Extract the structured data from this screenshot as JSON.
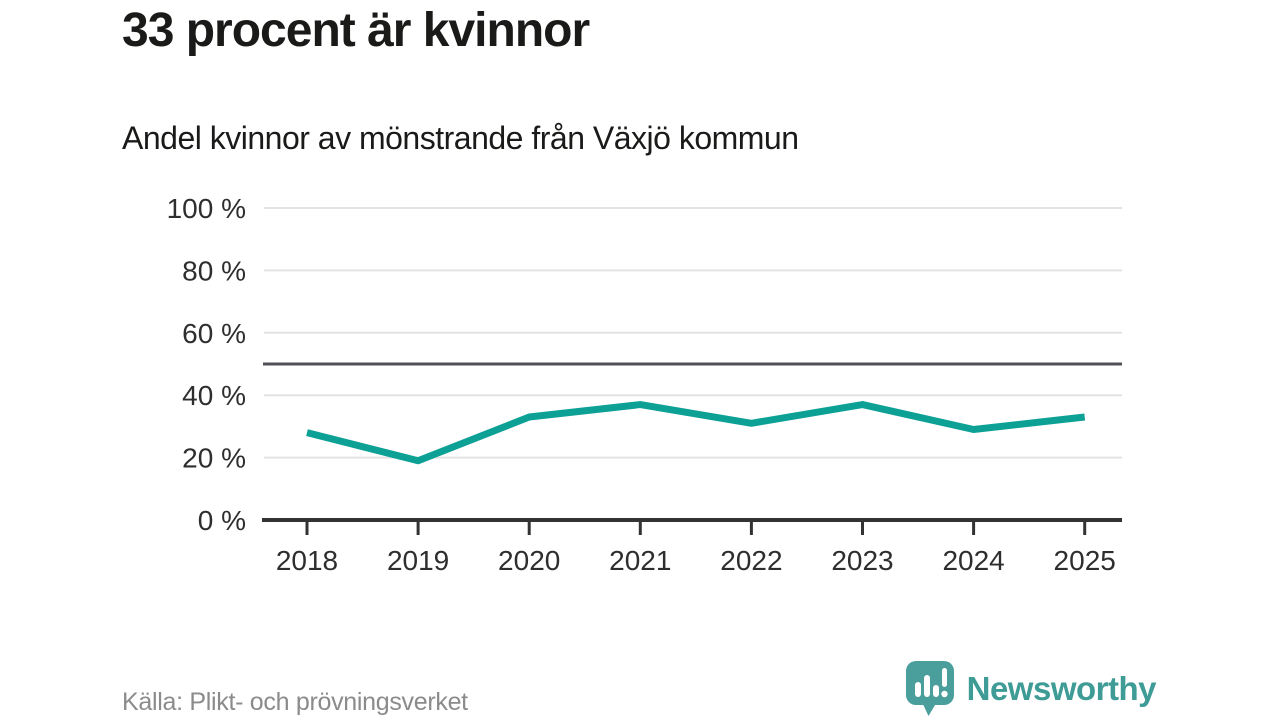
{
  "header": {
    "title": "33 procent är kvinnor",
    "subtitle": "Andel kvinnor av mönstrande från Växjö kommun"
  },
  "footer": {
    "source": "Källa: Plikt- och prövningsverket",
    "brand": "Newsworthy"
  },
  "colors": {
    "line": "#0da196",
    "grid": "#e3e3e3",
    "reference": "#515155",
    "axis": "#333333",
    "label": "#2e2e2e",
    "title": "#1a1a18",
    "source": "#8b8b8b",
    "brand": "#3e9b96",
    "bubble": "#4a9e9b"
  },
  "chart_data": {
    "type": "line",
    "title": "33 procent är kvinnor",
    "subtitle": "Andel kvinnor av mönstrande från Växjö kommun",
    "x": [
      "2018",
      "2019",
      "2020",
      "2021",
      "2022",
      "2023",
      "2024",
      "2025"
    ],
    "series": [
      {
        "name": "Andel kvinnor av mönstrande, Växjö kommun",
        "values": [
          28,
          19,
          33,
          37,
          31,
          37,
          29,
          33
        ]
      }
    ],
    "unit": "%",
    "xlabel": "",
    "ylabel": "",
    "ylim": [
      0,
      100
    ],
    "yticks": [
      0,
      20,
      40,
      60,
      80,
      100
    ],
    "ytick_suffix": " %",
    "reference_line": 50,
    "grid": true,
    "legend": false
  }
}
